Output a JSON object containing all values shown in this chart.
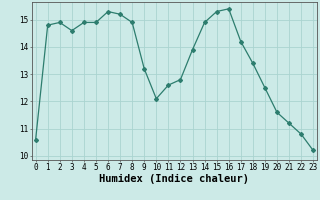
{
  "x": [
    0,
    1,
    2,
    3,
    4,
    5,
    6,
    7,
    8,
    9,
    10,
    11,
    12,
    13,
    14,
    15,
    16,
    17,
    18,
    19,
    20,
    21,
    22,
    23
  ],
  "y": [
    10.6,
    14.8,
    14.9,
    14.6,
    14.9,
    14.9,
    15.3,
    15.2,
    14.9,
    13.2,
    12.1,
    12.6,
    12.8,
    13.9,
    14.9,
    15.3,
    15.4,
    14.2,
    13.4,
    12.5,
    11.6,
    11.2,
    10.8,
    10.2
  ],
  "xlim": [
    -0.3,
    23.3
  ],
  "ylim": [
    9.85,
    15.65
  ],
  "yticks": [
    10,
    11,
    12,
    13,
    14,
    15
  ],
  "xticks": [
    0,
    1,
    2,
    3,
    4,
    5,
    6,
    7,
    8,
    9,
    10,
    11,
    12,
    13,
    14,
    15,
    16,
    17,
    18,
    19,
    20,
    21,
    22,
    23
  ],
  "xlabel": "Humidex (Indice chaleur)",
  "line_color": "#2d7d6e",
  "marker": "D",
  "markersize": 2.0,
  "bg_color": "#cceae7",
  "grid_color": "#aad4d0",
  "tick_fontsize": 5.5,
  "xlabel_fontsize": 7.5
}
